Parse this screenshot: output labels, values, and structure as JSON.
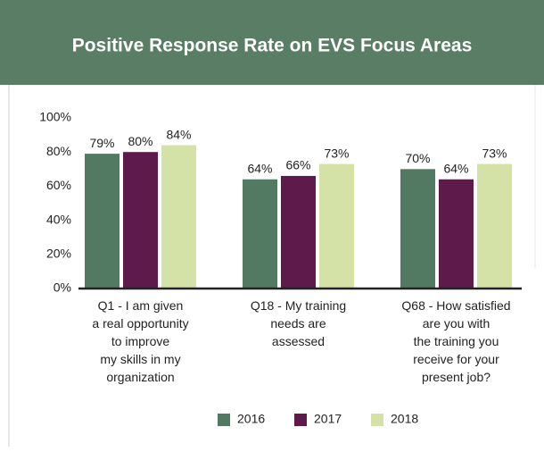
{
  "chart_data": {
    "type": "bar",
    "title": "Positive Response Rate on EVS Focus Areas",
    "categories": [
      "Q1 - I am given\na real opportunity\nto improve\nmy skills in my\norganization",
      "Q18 - My training\nneeds are\nassessed",
      "Q68 - How satisfied\nare you with\nthe training you\nreceive for your\npresent job?"
    ],
    "series": [
      {
        "name": "2016",
        "color": "#527a62",
        "values": [
          79,
          64,
          70
        ],
        "value_labels": [
          "79%",
          "64%",
          "70%"
        ]
      },
      {
        "name": "2017",
        "color": "#5e1a4a",
        "values": [
          80,
          66,
          64
        ],
        "value_labels": [
          "80%",
          "66%",
          "64%"
        ]
      },
      {
        "name": "2018",
        "color": "#d4e2a8",
        "values": [
          84,
          73,
          73
        ],
        "value_labels": [
          "84%",
          "73%",
          "73%"
        ]
      }
    ],
    "ylim": [
      0,
      100
    ],
    "yticks": [
      {
        "value": 0,
        "label": "0%"
      },
      {
        "value": 20,
        "label": "20%"
      },
      {
        "value": 40,
        "label": "40%"
      },
      {
        "value": 60,
        "label": "60%"
      },
      {
        "value": 80,
        "label": "80%"
      },
      {
        "value": 100,
        "label": "100%"
      }
    ],
    "grid": false,
    "legend": "bottom",
    "header_color": "#5a7d65"
  }
}
